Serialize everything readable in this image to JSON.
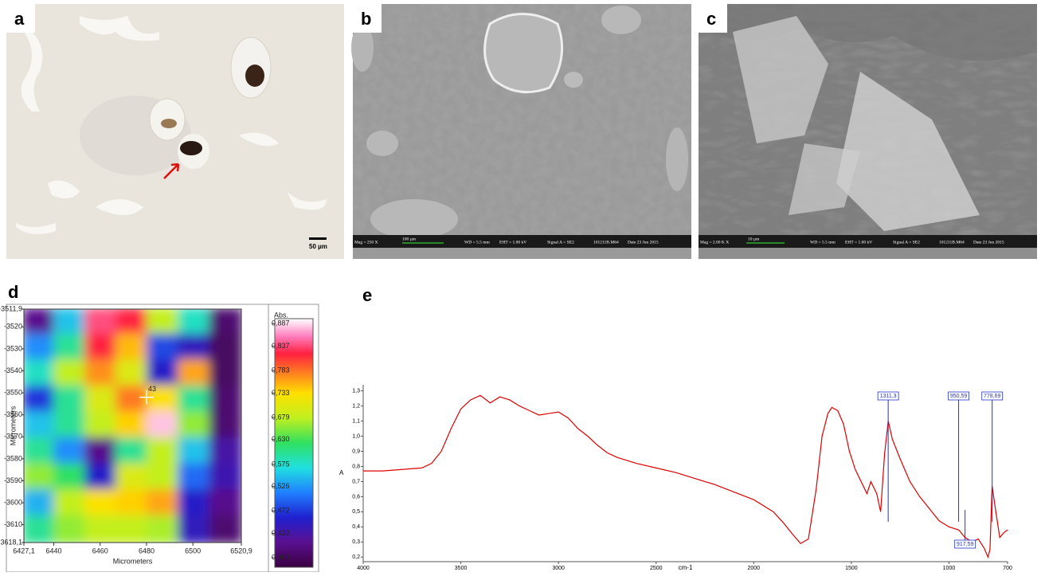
{
  "panels": [
    {
      "label": "a",
      "scale_bar": "50 µm"
    },
    {
      "label": "b",
      "info": [
        "Mag = 250 X",
        "100 µm",
        "WD = 5.5 mm",
        "EHT = 1.00 kV",
        "Signal A = SE2",
        "101211B.M64",
        "Date 23 Jun 2015"
      ]
    },
    {
      "label": "c",
      "info": [
        "Mag = 2.00 K X",
        "10 µm",
        "WD = 5.5 mm",
        "EHT = 1.00 kV",
        "Signal A = SE2",
        "101211B.M64",
        "Date 23 Jun 2015"
      ]
    }
  ],
  "chart_data": [
    {
      "type": "heatmap",
      "label": "d",
      "xlabel": "Micrometers",
      "ylabel": "Micrometers",
      "xlim": [
        6427.1,
        6520.9
      ],
      "xticks": [
        {
          "value": 6427.1,
          "label": "6427,1"
        },
        6440,
        6460,
        6480,
        6500,
        {
          "value": 6520.9,
          "label": "6520,9"
        }
      ],
      "ylim": [
        -3511.9,
        -3618.1
      ],
      "yticks": [
        {
          "value": -3511.9,
          "label": "-3511,9"
        },
        -3520,
        -3530,
        -3540,
        -3550,
        -3560,
        -3570,
        -3580,
        -3590,
        -3600,
        -3610,
        {
          "value": -3618.1,
          "label": "-3618,1"
        }
      ],
      "colorbar_title": "Abs.",
      "clim": [
        0.347,
        0.898
      ],
      "colorbar_ticks": [
        {
          "value": 0.887,
          "label": "0,887"
        },
        {
          "value": 0.837,
          "label": "0,837"
        },
        {
          "value": 0.783,
          "label": "0,783"
        },
        {
          "value": 0.733,
          "label": "0,733"
        },
        {
          "value": 0.679,
          "label": "0,679"
        },
        {
          "value": 0.63,
          "label": "0,630"
        },
        {
          "value": 0.575,
          "label": "0,575"
        },
        {
          "value": 0.526,
          "label": "0,526"
        },
        {
          "value": 0.472,
          "label": "0,472"
        },
        {
          "value": 0.422,
          "label": "0,422"
        },
        {
          "value": 0.368,
          "label": "0,368"
        }
      ],
      "values": [
        [
          0.4,
          0.55,
          0.84,
          0.82,
          0.68,
          0.58,
          0.38
        ],
        [
          0.52,
          0.6,
          0.82,
          0.75,
          0.48,
          0.44,
          0.37
        ],
        [
          0.58,
          0.68,
          0.77,
          0.7,
          0.45,
          0.76,
          0.37
        ],
        [
          0.47,
          0.6,
          0.7,
          0.78,
          0.73,
          0.6,
          0.38
        ],
        [
          0.55,
          0.6,
          0.68,
          0.74,
          0.88,
          0.66,
          0.38
        ],
        [
          0.6,
          0.52,
          0.4,
          0.6,
          0.68,
          0.55,
          0.42
        ],
        [
          0.66,
          0.62,
          0.45,
          0.7,
          0.68,
          0.5,
          0.43
        ],
        [
          0.54,
          0.68,
          0.73,
          0.74,
          0.76,
          0.45,
          0.4
        ],
        [
          0.6,
          0.66,
          0.68,
          0.68,
          0.67,
          0.44,
          0.38
        ]
      ],
      "marker": {
        "label": "43",
        "x": 6480,
        "y": -3552
      }
    },
    {
      "type": "line",
      "label": "e",
      "xlabel": "cm-1",
      "ylabel": "A",
      "color": "#dd0000",
      "xlim": [
        4000,
        700
      ],
      "xticks": [
        4000,
        3500,
        3000,
        2500,
        2000,
        1500,
        1000,
        700
      ],
      "ylim": [
        0.17,
        1.34
      ],
      "yticks": [
        {
          "value": 0.2,
          "label": "0,2"
        },
        {
          "value": 0.3,
          "label": "0,3"
        },
        {
          "value": 0.4,
          "label": "0,4"
        },
        {
          "value": 0.5,
          "label": "0,5"
        },
        {
          "value": 0.6,
          "label": "0,6"
        },
        {
          "value": 0.7,
          "label": "0,7"
        },
        {
          "value": 0.8,
          "label": "0,8"
        },
        {
          "value": 0.9,
          "label": "0,9"
        },
        {
          "value": 1.0,
          "label": "1,0"
        },
        {
          "value": 1.1,
          "label": "1,1"
        },
        {
          "value": 1.2,
          "label": "1,2"
        },
        {
          "value": 1.3,
          "label": "1,3"
        }
      ],
      "x": [
        4000,
        3900,
        3800,
        3700,
        3650,
        3600,
        3550,
        3500,
        3450,
        3400,
        3350,
        3300,
        3250,
        3200,
        3150,
        3100,
        3050,
        3000,
        2950,
        2900,
        2850,
        2800,
        2750,
        2700,
        2600,
        2500,
        2400,
        2300,
        2200,
        2100,
        2000,
        1900,
        1850,
        1800,
        1760,
        1720,
        1680,
        1650,
        1620,
        1600,
        1570,
        1540,
        1510,
        1480,
        1450,
        1420,
        1400,
        1370,
        1350,
        1330,
        1311,
        1290,
        1250,
        1200,
        1150,
        1100,
        1050,
        1000,
        950,
        918,
        880,
        850,
        820,
        800,
        790,
        779,
        760,
        740,
        720,
        700
      ],
      "values": [
        0.77,
        0.77,
        0.78,
        0.79,
        0.82,
        0.9,
        1.05,
        1.18,
        1.24,
        1.27,
        1.22,
        1.26,
        1.24,
        1.2,
        1.17,
        1.14,
        1.15,
        1.16,
        1.12,
        1.05,
        1.0,
        0.94,
        0.89,
        0.86,
        0.82,
        0.79,
        0.76,
        0.72,
        0.68,
        0.63,
        0.58,
        0.5,
        0.43,
        0.35,
        0.29,
        0.32,
        0.65,
        1.0,
        1.15,
        1.19,
        1.17,
        1.08,
        0.9,
        0.78,
        0.7,
        0.62,
        0.7,
        0.62,
        0.5,
        0.88,
        1.1,
        0.98,
        0.85,
        0.7,
        0.6,
        0.52,
        0.44,
        0.4,
        0.38,
        0.33,
        0.3,
        0.32,
        0.26,
        0.2,
        0.25,
        0.67,
        0.5,
        0.33,
        0.36,
        0.38
      ],
      "annotations": [
        {
          "x": 1311.3,
          "label": "1311,3",
          "position": "top"
        },
        {
          "x": 950.59,
          "label": "950,59",
          "position": "top"
        },
        {
          "x": 778.69,
          "label": "778,69",
          "position": "top"
        },
        {
          "x": 917.59,
          "label": "917,59",
          "position": "bottom"
        }
      ]
    }
  ]
}
